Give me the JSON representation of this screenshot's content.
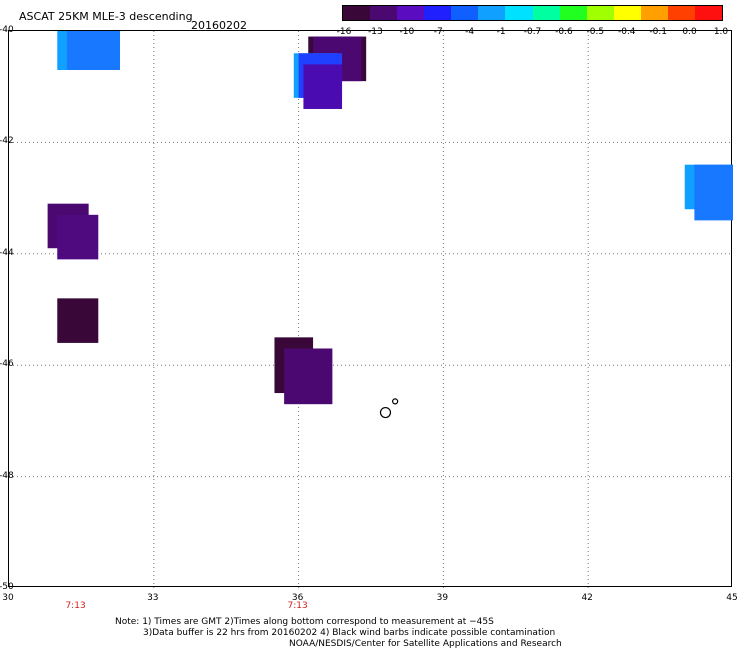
{
  "header": {
    "title": "ASCAT 25KM MLE-3 descending",
    "date": "20160202"
  },
  "colorbar": {
    "labels": [
      "-16",
      "-13",
      "-10",
      "-7",
      "-4",
      "-1",
      "-0.7",
      "-0.6",
      "-0.5",
      "-0.4",
      "-0.1",
      "0.0",
      "1.0"
    ],
    "colors": [
      "#3a0838",
      "#4a0870",
      "#5a0cc0",
      "#2020ff",
      "#1060ff",
      "#10a0ff",
      "#00e0ff",
      "#00ffa0",
      "#20ff20",
      "#a0ff00",
      "#ffff00",
      "#ffa000",
      "#ff4000",
      "#ff1010"
    ]
  },
  "axes": {
    "lat_labels": [
      "-40",
      "-42",
      "-44",
      "-46",
      "-48",
      "-50"
    ],
    "lon_labels": [
      "30",
      "33",
      "36",
      "39",
      "42",
      "45"
    ],
    "time_labels": [
      "7:13",
      "7:13"
    ]
  },
  "notes": {
    "line1": "Note: 1) Times are GMT 2)Times along bottom correspond to measurement at −45S",
    "line2": "3)Data buffer is 22 hrs from 20160202 4) Black wind barbs indicate possible contamination",
    "line3": "NOAA/NESDIS/Center for Satellite Applications and Research"
  },
  "map_data": {
    "lat_range": [
      -50,
      -40
    ],
    "lon_range": [
      30,
      45
    ],
    "cells": [
      {
        "lat": -40.0,
        "lon": 31.0,
        "w": 1.1,
        "h": 0.7,
        "color": "#10a0ff"
      },
      {
        "lat": -40.0,
        "lon": 31.2,
        "w": 1.1,
        "h": 0.7,
        "color": "#1878ff"
      },
      {
        "lat": -40.1,
        "lon": 36.2,
        "w": 1.2,
        "h": 0.8,
        "color": "#3a0838"
      },
      {
        "lat": -40.1,
        "lon": 36.3,
        "w": 1.0,
        "h": 0.8,
        "color": "#4a0870"
      },
      {
        "lat": -40.4,
        "lon": 35.9,
        "w": 0.9,
        "h": 0.8,
        "color": "#10a0ff"
      },
      {
        "lat": -40.4,
        "lon": 36.0,
        "w": 0.9,
        "h": 0.8,
        "color": "#2040ff"
      },
      {
        "lat": -40.6,
        "lon": 36.1,
        "w": 0.8,
        "h": 0.8,
        "color": "#4a0cb0"
      },
      {
        "lat": -42.4,
        "lon": 44.0,
        "w": 1.0,
        "h": 0.8,
        "color": "#10a0ff"
      },
      {
        "lat": -42.4,
        "lon": 44.2,
        "w": 0.8,
        "h": 1.0,
        "color": "#1878ff"
      },
      {
        "lat": -43.1,
        "lon": 30.8,
        "w": 0.85,
        "h": 0.8,
        "color": "#4a0870"
      },
      {
        "lat": -43.3,
        "lon": 31.0,
        "w": 0.85,
        "h": 0.8,
        "color": "#500a80"
      },
      {
        "lat": -44.8,
        "lon": 31.0,
        "w": 0.85,
        "h": 0.8,
        "color": "#3a0838"
      },
      {
        "lat": -45.5,
        "lon": 35.5,
        "w": 0.8,
        "h": 1.0,
        "color": "#3a0838"
      },
      {
        "lat": -45.7,
        "lon": 35.7,
        "w": 1.0,
        "h": 1.0,
        "color": "#4a0870"
      }
    ],
    "barbs": [
      {
        "lat": -46.85,
        "lon": 37.8
      },
      {
        "lat": -46.65,
        "lon": 38.0
      }
    ]
  }
}
